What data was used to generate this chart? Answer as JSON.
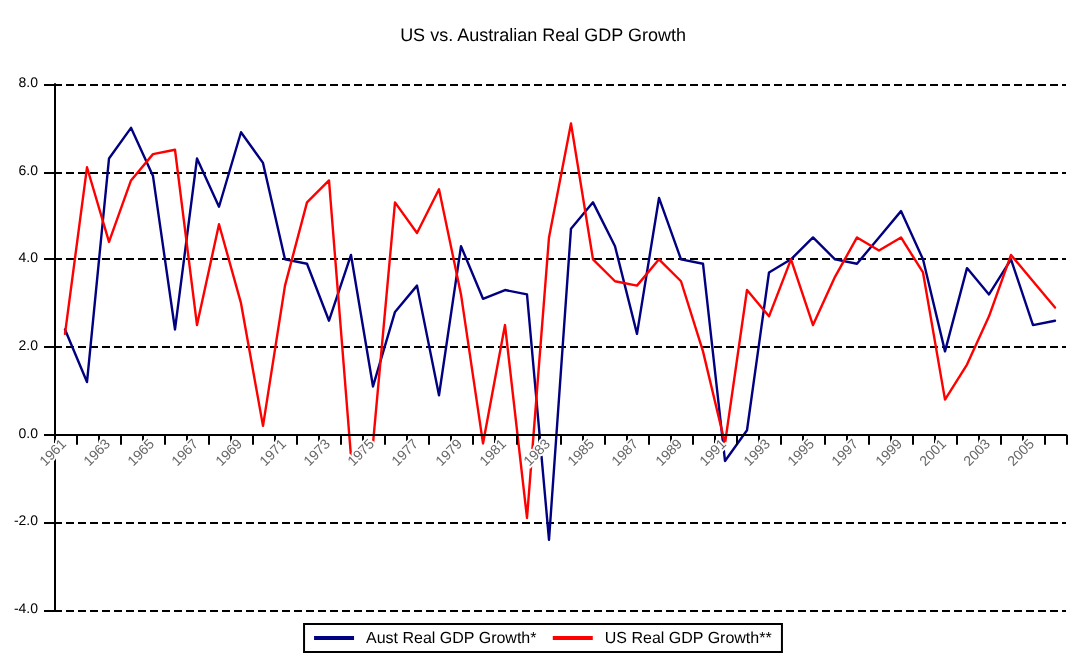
{
  "chart_data": {
    "type": "line",
    "title": "US vs. Australian Real GDP Growth",
    "categories": [
      "1961",
      null,
      "1963",
      null,
      "1965",
      null,
      "1967",
      null,
      "1969",
      null,
      "1971",
      null,
      "1973",
      null,
      "1975",
      null,
      "1977",
      null,
      "1979",
      null,
      "1981",
      null,
      "1983",
      null,
      "1985",
      null,
      "1987",
      null,
      "1989",
      null,
      "1991",
      null,
      "1993",
      null,
      "1995",
      null,
      "1997",
      null,
      "1999",
      null,
      "2001",
      null,
      "2003",
      null,
      "2005",
      null
    ],
    "series": [
      {
        "name": "Aust Real GDP Growth*",
        "color": "#000080",
        "values": [
          2.4,
          1.2,
          6.3,
          7.0,
          5.9,
          2.4,
          6.3,
          5.2,
          6.9,
          6.2,
          4.0,
          3.9,
          2.6,
          4.1,
          1.1,
          2.8,
          3.4,
          0.9,
          4.3,
          3.1,
          3.3,
          3.2,
          -2.4,
          4.7,
          5.3,
          4.3,
          2.3,
          5.4,
          4.0,
          3.9,
          -0.6,
          0.1,
          3.7,
          4.0,
          4.5,
          4.0,
          3.9,
          4.5,
          5.1,
          4.0,
          1.9,
          3.8,
          3.2,
          4.0,
          2.5,
          2.6
        ]
      },
      {
        "name": "US Real GDP Growth**",
        "color": "#ff0000",
        "values": [
          2.3,
          6.1,
          4.4,
          5.8,
          6.4,
          6.5,
          2.5,
          4.8,
          3.0,
          0.2,
          3.4,
          5.3,
          5.8,
          -0.5,
          -0.2,
          5.3,
          4.6,
          5.6,
          3.2,
          -0.2,
          2.5,
          -1.9,
          4.5,
          7.1,
          4.0,
          3.5,
          3.4,
          4.0,
          3.5,
          1.9,
          -0.2,
          3.3,
          2.7,
          4.0,
          2.5,
          3.6,
          4.5,
          4.2,
          4.5,
          3.7,
          0.8,
          1.6,
          2.7,
          4.1,
          3.5,
          2.9
        ]
      }
    ],
    "ylim": [
      -4,
      8
    ],
    "yticks": [
      {
        "value": -4,
        "label": "-4.0"
      },
      {
        "value": -2,
        "label": "-2.0"
      },
      {
        "value": 0,
        "label": "0.0"
      },
      {
        "value": 2,
        "label": "2.0"
      },
      {
        "value": 4,
        "label": "4.0"
      },
      {
        "value": 6,
        "label": "6.0"
      },
      {
        "value": 8,
        "label": "8.0"
      }
    ],
    "grid": "y",
    "legend": "bottom",
    "marker": "none",
    "line_style": "solid"
  }
}
